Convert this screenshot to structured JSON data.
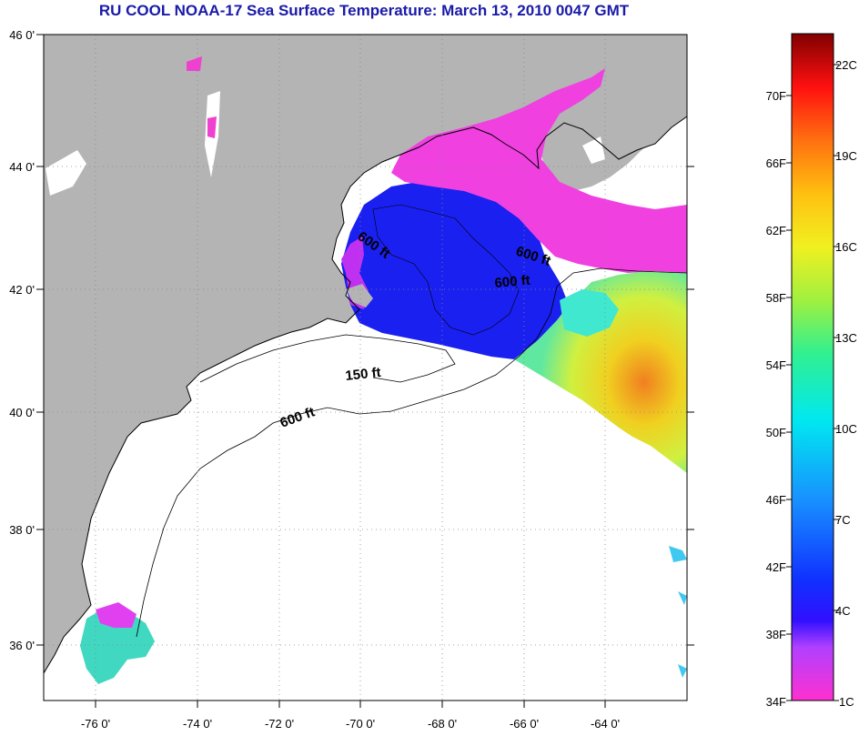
{
  "title": "RU COOL  NOAA-17  Sea Surface Temperature:  March 13, 2010 0047 GMT",
  "colors": {
    "land": "#b4b4b4",
    "cloud": "#ffffff",
    "coastline": "#000000",
    "grid": "#888888",
    "title": "#1a1aa8"
  },
  "map": {
    "lon_range": [
      -77,
      -62.8
    ],
    "lat_range": [
      35,
      46
    ],
    "lon_ticks": [
      "-76 0'",
      "-74 0'",
      "-72 0'",
      "-70 0'",
      "-68 0'",
      "-66 0'",
      "-64 0'"
    ],
    "lat_ticks": [
      "46 0'",
      "44 0'",
      "42 0'",
      "40 0'",
      "38 0'",
      "36 0'"
    ],
    "contour_labels": [
      {
        "text": "600 ft"
      },
      {
        "text": "600 ft"
      },
      {
        "text": "600 ft"
      },
      {
        "text": "150 ft"
      },
      {
        "text": "600 ft"
      }
    ]
  },
  "colorbar": {
    "fahrenheit_labels": [
      "70F",
      "66F",
      "62F",
      "58F",
      "54F",
      "50F",
      "46F",
      "42F",
      "38F",
      "34F"
    ],
    "celsius_labels": [
      "22C",
      "19C",
      "16C",
      "13C",
      "10C",
      "7C",
      "4C",
      "1C"
    ]
  }
}
